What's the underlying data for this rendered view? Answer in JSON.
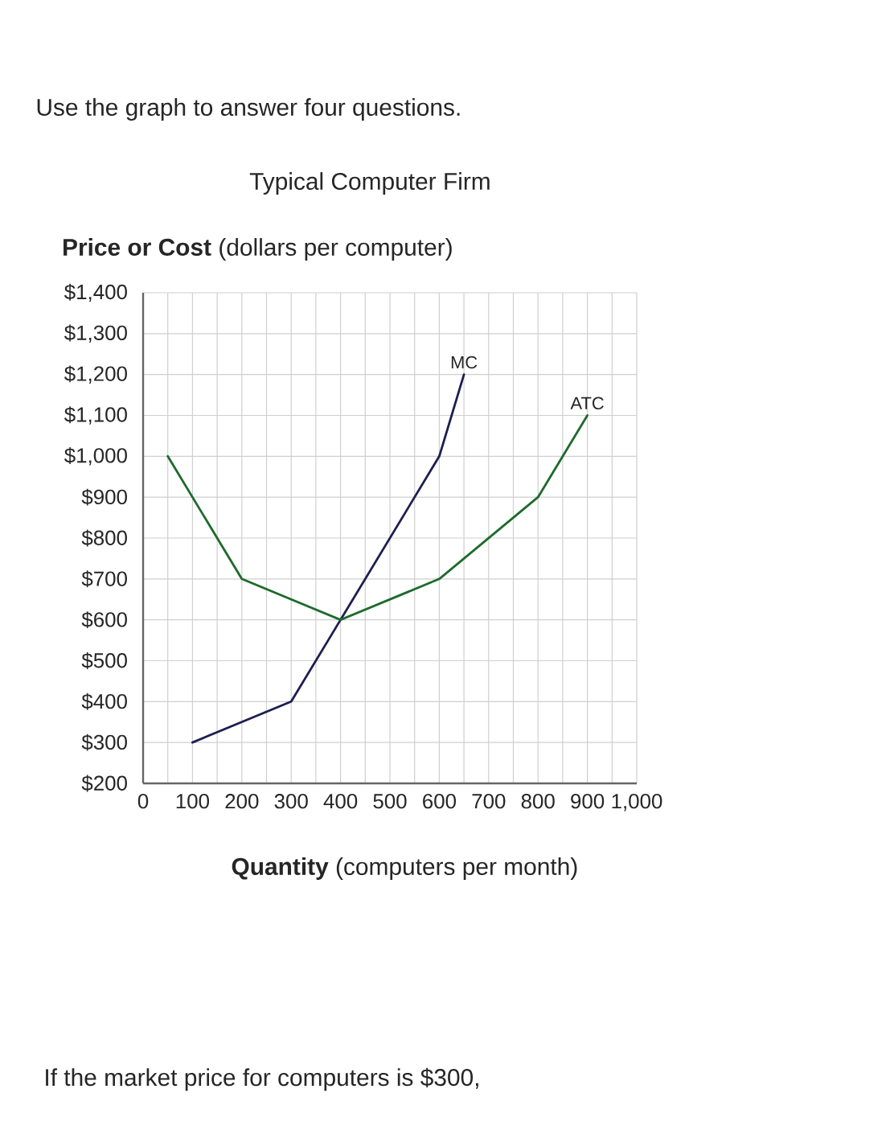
{
  "chart_data": {
    "type": "line",
    "title": "Typical Computer Firm",
    "xlabel": "**Quantity** (computers per month)",
    "ylabel": "**Price or Cost** (dollars per computer)",
    "annotations": [
      "Use the graph to answer four questions.",
      "If the market price for computers is $300,"
    ],
    "series": [
      {
        "name": "MC",
        "color": "#1c1f4f",
        "x": [
          100,
          300,
          400,
          600,
          650
        ],
        "values": [
          300,
          400,
          600,
          1000,
          1200
        ]
      },
      {
        "name": "ATC",
        "color": "#1e6a2c",
        "x": [
          50,
          200,
          400,
          600,
          800,
          900
        ],
        "values": [
          1000,
          700,
          600,
          700,
          900,
          1100
        ]
      }
    ],
    "xlim": [
      0,
      1000
    ],
    "ylim": [
      200,
      1400
    ],
    "xticks": [
      0,
      {
        "value": 50,
        "label": null
      },
      100,
      {
        "value": 150,
        "label": null
      },
      200,
      {
        "value": 250,
        "label": null
      },
      300,
      {
        "value": 350,
        "label": null
      },
      400,
      {
        "value": 450,
        "label": null
      },
      500,
      {
        "value": 550,
        "label": null
      },
      600,
      {
        "value": 650,
        "label": null
      },
      700,
      {
        "value": 750,
        "label": null
      },
      800,
      {
        "value": 850,
        "label": null
      },
      900,
      {
        "value": 950,
        "label": null
      },
      {
        "value": 1000,
        "label": "1,000"
      }
    ],
    "yticks": [
      {
        "value": 200,
        "label": "$200"
      },
      {
        "value": 300,
        "label": "$300"
      },
      {
        "value": 400,
        "label": "$400"
      },
      {
        "value": 500,
        "label": "$500"
      },
      {
        "value": 600,
        "label": "$600"
      },
      {
        "value": 700,
        "label": "$700"
      },
      {
        "value": 800,
        "label": "$800"
      },
      {
        "value": 900,
        "label": "$900"
      },
      {
        "value": 1000,
        "label": "$1,000"
      },
      {
        "value": 1100,
        "label": "$1,100"
      },
      {
        "value": 1200,
        "label": "$1,200"
      },
      {
        "value": 1300,
        "label": "$1,300"
      },
      {
        "value": 1400,
        "label": "$1,400"
      }
    ],
    "grid": true,
    "legend": false,
    "marker": "none",
    "line_style": "solid"
  }
}
